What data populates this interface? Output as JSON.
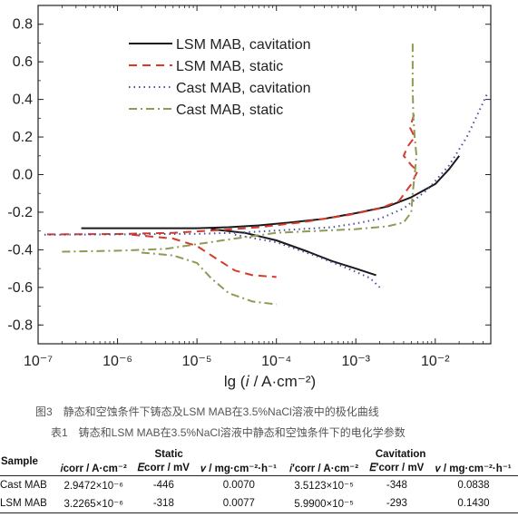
{
  "chart_data": {
    "type": "line",
    "xlabel": "lg (𝑖 / A·cm⁻²)",
    "ylabel": "",
    "x_scale": "log",
    "xlim": [
      1e-07,
      0.05
    ],
    "ylim": [
      -0.9,
      0.9
    ],
    "x_ticks": [
      "10⁻⁷",
      "10⁻⁶",
      "10⁻⁵",
      "10⁻⁴",
      "10⁻³",
      "10⁻²"
    ],
    "y_ticks": [
      "0.8",
      "0.6",
      "0.4",
      "0.2",
      "0.0",
      "-0.2",
      "-0.4",
      "-0.6",
      "-0.8"
    ],
    "legend_position": "top-center",
    "series": [
      {
        "name": "LSM MAB, cavitation",
        "color": "#1a1a1a",
        "dash": "solid",
        "anodic": [
          [
            3.5e-07,
            -0.285
          ],
          [
            2e-06,
            -0.285
          ],
          [
            1e-05,
            -0.285
          ],
          [
            2.5e-05,
            -0.28
          ],
          [
            6e-05,
            -0.27
          ],
          [
            0.00015,
            -0.255
          ],
          [
            0.0004,
            -0.235
          ],
          [
            0.001,
            -0.205
          ],
          [
            0.0025,
            -0.17
          ],
          [
            0.005,
            -0.12
          ],
          [
            0.01,
            -0.05
          ],
          [
            0.015,
            0.03
          ],
          [
            0.02,
            0.1
          ]
        ],
        "cathodic": [
          [
            1.5e-05,
            -0.29
          ],
          [
            4e-05,
            -0.31
          ],
          [
            0.0001,
            -0.35
          ],
          [
            0.00025,
            -0.41
          ],
          [
            0.0005,
            -0.46
          ],
          [
            0.001,
            -0.5
          ],
          [
            0.0018,
            -0.535
          ]
        ]
      },
      {
        "name": "LSM MAB, static",
        "color": "#d63a2a",
        "dash": "dashed",
        "anodic": [
          [
            1.3e-07,
            -0.318
          ],
          [
            1e-06,
            -0.316
          ],
          [
            5e-06,
            -0.31
          ],
          [
            2e-05,
            -0.295
          ],
          [
            6e-05,
            -0.28
          ],
          [
            0.0002,
            -0.255
          ],
          [
            0.0008,
            -0.215
          ],
          [
            0.002,
            -0.18
          ],
          [
            0.0035,
            -0.14
          ],
          [
            0.005,
            -0.05
          ],
          [
            0.006,
            0.02
          ],
          [
            0.005,
            0.05
          ],
          [
            0.004,
            0.1
          ],
          [
            0.0045,
            0.15
          ],
          [
            0.0055,
            0.2
          ],
          [
            0.0048,
            0.25
          ],
          [
            0.0055,
            0.33
          ]
        ],
        "cathodic": [
          [
            1.5e-06,
            -0.32
          ],
          [
            5e-06,
            -0.34
          ],
          [
            1e-05,
            -0.38
          ],
          [
            1.8e-05,
            -0.45
          ],
          [
            3e-05,
            -0.51
          ],
          [
            5e-05,
            -0.535
          ],
          [
            0.0001,
            -0.545
          ]
        ]
      },
      {
        "name": "Cast MAB, cavitation",
        "color": "#4b4fa0",
        "dash": "dotted",
        "anodic": [
          [
            1.2e-07,
            -0.32
          ],
          [
            1e-06,
            -0.318
          ],
          [
            1e-05,
            -0.315
          ],
          [
            3e-05,
            -0.31
          ],
          [
            8e-05,
            -0.3
          ],
          [
            0.0002,
            -0.29
          ],
          [
            0.0005,
            -0.28
          ],
          [
            0.001,
            -0.26
          ],
          [
            0.002,
            -0.235
          ],
          [
            0.004,
            -0.18
          ],
          [
            0.008,
            -0.08
          ],
          [
            0.015,
            0.05
          ],
          [
            0.025,
            0.2
          ],
          [
            0.035,
            0.33
          ],
          [
            0.045,
            0.43
          ]
        ],
        "cathodic": [
          [
            3e-05,
            -0.32
          ],
          [
            0.0001,
            -0.36
          ],
          [
            0.0003,
            -0.43
          ],
          [
            0.0008,
            -0.5
          ],
          [
            0.0015,
            -0.55
          ],
          [
            0.002,
            -0.6
          ]
        ]
      },
      {
        "name": "Cast MAB, static",
        "color": "#8f9a54",
        "dash": "dashdot",
        "anodic": [
          [
            2e-07,
            -0.41
          ],
          [
            1e-06,
            -0.405
          ],
          [
            4e-06,
            -0.395
          ],
          [
            1e-05,
            -0.37
          ],
          [
            3e-05,
            -0.34
          ],
          [
            0.0001,
            -0.31
          ],
          [
            0.0003,
            -0.3
          ],
          [
            0.001,
            -0.29
          ],
          [
            0.0025,
            -0.275
          ],
          [
            0.004,
            -0.255
          ],
          [
            0.005,
            -0.2
          ],
          [
            0.0052,
            -0.1
          ],
          [
            0.0055,
            0.0
          ],
          [
            0.0058,
            0.1
          ],
          [
            0.0055,
            0.2
          ],
          [
            0.0053,
            0.3
          ],
          [
            0.0052,
            0.45
          ],
          [
            0.0052,
            0.55
          ],
          [
            0.0052,
            0.7
          ]
        ],
        "cathodic": [
          [
            2e-06,
            -0.415
          ],
          [
            5e-06,
            -0.43
          ],
          [
            1e-05,
            -0.47
          ],
          [
            1.5e-05,
            -0.55
          ],
          [
            2.5e-05,
            -0.63
          ],
          [
            5e-05,
            -0.675
          ],
          [
            0.0001,
            -0.69
          ]
        ]
      }
    ]
  },
  "figure_caption": "图3　静态和空蚀条件下铸态及LSM MAB在3.5%NaCl溶液中的极化曲线",
  "table_caption": "表1　铸态和LSM MAB在3.5%NaCl溶液中静态和空蚀条件下的电化学参数",
  "table": {
    "sample_header": "Sample",
    "group_headers": [
      "Static",
      "Cavitation"
    ],
    "column_headers": [
      "𝑖corr / A·cm⁻²",
      "𝐸corr / mV",
      "𝑣 / mg·cm⁻²·h⁻¹",
      "𝑖′corr / A·cm⁻²",
      "𝐸′corr / mV",
      "𝑣 / mg·cm⁻²·h⁻¹"
    ],
    "rows": [
      {
        "sample": "Cast MAB",
        "values": [
          "2.9472×10⁻⁶",
          "-446",
          "0.0070",
          "3.5123×10⁻⁵",
          "-348",
          "0.0838"
        ]
      },
      {
        "sample": "LSM MAB",
        "values": [
          "3.2265×10⁻⁶",
          "-318",
          "0.0077",
          "5.9900×10⁻⁵",
          "-293",
          "0.1430"
        ]
      }
    ]
  }
}
